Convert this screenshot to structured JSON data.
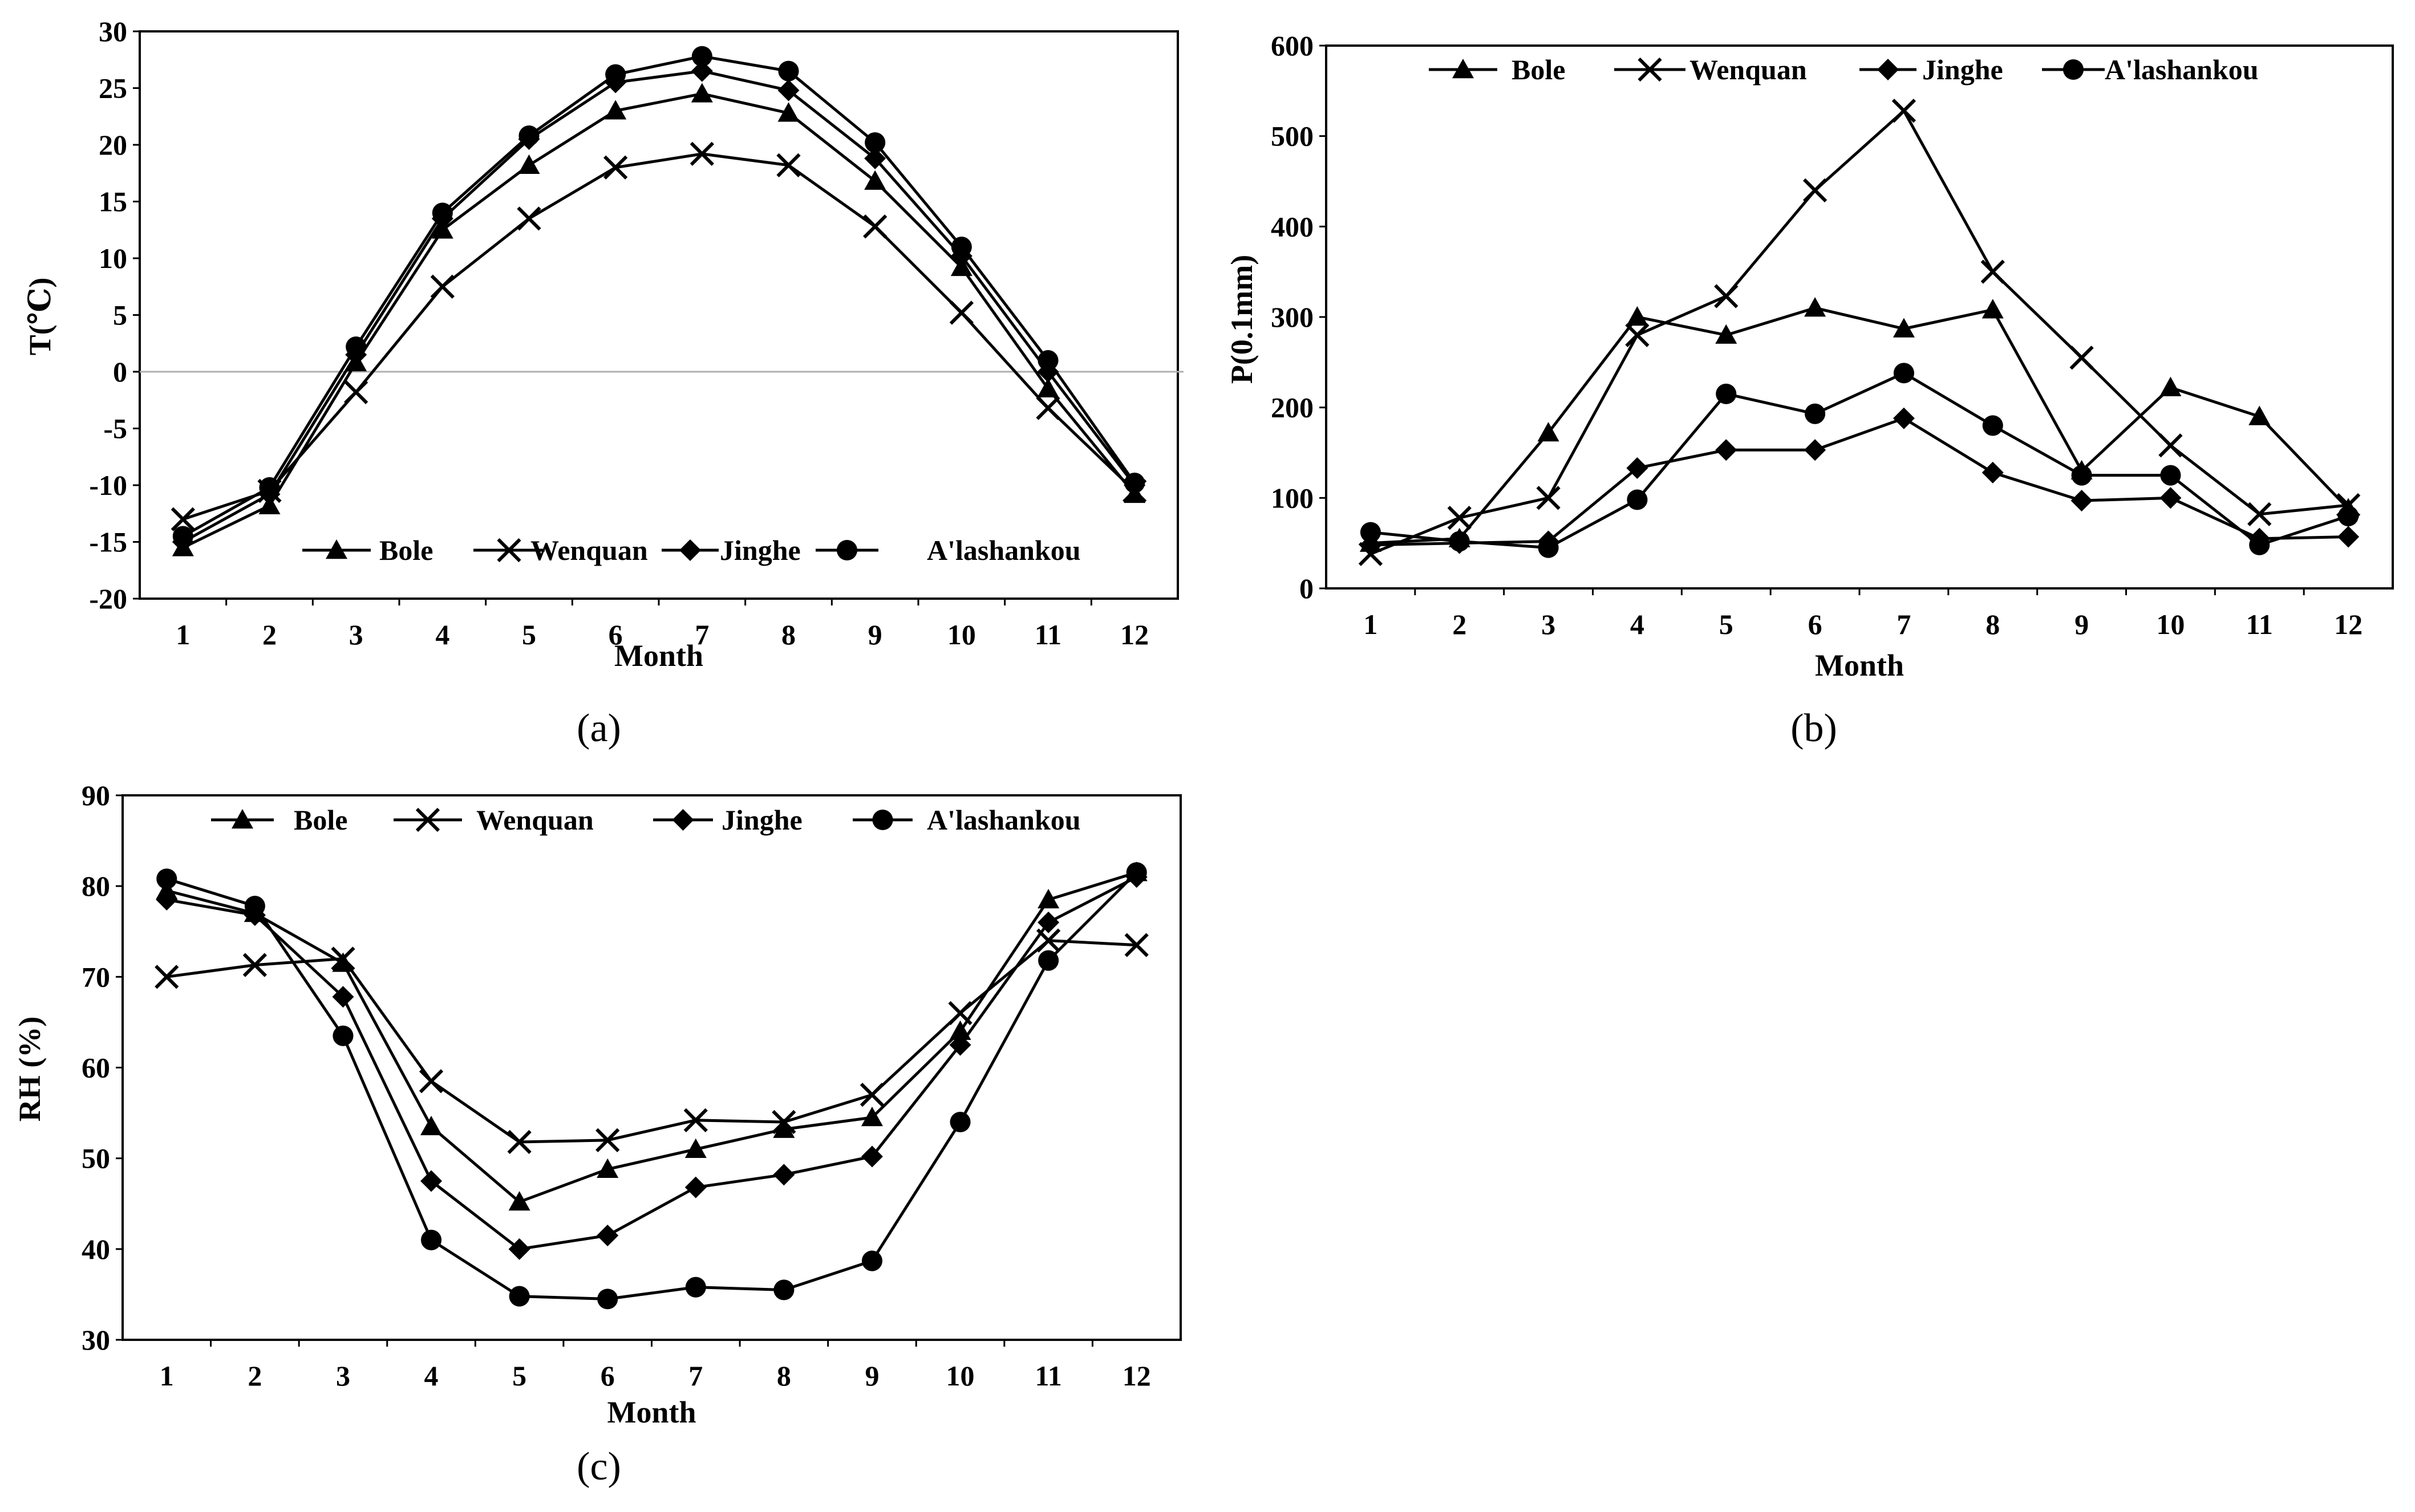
{
  "chart_data": [
    {
      "type": "line",
      "panel": "a",
      "panel_label": "(a)",
      "xlabel": "Month",
      "ylabel": "T(℃)",
      "categories": [
        "1",
        "2",
        "3",
        "4",
        "5",
        "6",
        "7",
        "8",
        "9",
        "10",
        "11",
        "12"
      ],
      "ylim": [
        -20,
        30
      ],
      "yticks": [
        "30",
        "25",
        "20",
        "15",
        "10",
        "5",
        "0",
        "-5",
        "-10",
        "-15",
        "-20"
      ],
      "zero_line": true,
      "legend_position": "bottom",
      "series": [
        {
          "name": "Bole",
          "marker": "triangle",
          "values": [
            -15.5,
            -11.8,
            0.8,
            12.5,
            18.2,
            23.0,
            24.5,
            22.8,
            16.8,
            9.2,
            -1.5,
            -10.8
          ]
        },
        {
          "name": "Wenquan",
          "marker": "x",
          "values": [
            -13.0,
            -10.5,
            -1.8,
            7.5,
            13.5,
            18.0,
            19.2,
            18.2,
            12.8,
            5.2,
            -3.2,
            -10.5
          ]
        },
        {
          "name": "Jinghe",
          "marker": "diamond",
          "values": [
            -15.0,
            -10.8,
            1.5,
            13.5,
            20.5,
            25.5,
            26.5,
            24.8,
            18.8,
            10.2,
            0.0,
            -10.0
          ]
        },
        {
          "name": "A'lashankou",
          "marker": "circle",
          "values": [
            -14.5,
            -10.2,
            2.2,
            14.0,
            20.8,
            26.2,
            27.8,
            26.5,
            20.2,
            11.0,
            1.0,
            -9.8
          ]
        }
      ]
    },
    {
      "type": "line",
      "panel": "b",
      "panel_label": "(b)",
      "xlabel": "Month",
      "ylabel": "P(0.1mm)",
      "categories": [
        "1",
        "2",
        "3",
        "4",
        "5",
        "6",
        "7",
        "8",
        "9",
        "10",
        "11",
        "12"
      ],
      "ylim": [
        0,
        600
      ],
      "yticks": [
        "600",
        "500",
        "400",
        "300",
        "200",
        "100",
        "0"
      ],
      "legend_position": "top",
      "series": [
        {
          "name": "Bole",
          "marker": "triangle",
          "values": [
            50,
            55,
            172,
            300,
            280,
            310,
            287,
            308,
            130,
            222,
            190,
            88
          ]
        },
        {
          "name": "Wenquan",
          "marker": "x",
          "values": [
            38,
            78,
            100,
            280,
            323,
            440,
            528,
            350,
            255,
            158,
            82,
            92
          ]
        },
        {
          "name": "Jinghe",
          "marker": "diamond",
          "values": [
            48,
            50,
            52,
            133,
            153,
            153,
            188,
            128,
            97,
            100,
            55,
            57
          ]
        },
        {
          "name": "A'lashankou",
          "marker": "circle",
          "values": [
            62,
            52,
            45,
            98,
            215,
            193,
            238,
            180,
            125,
            125,
            48,
            80
          ]
        }
      ]
    },
    {
      "type": "line",
      "panel": "c",
      "panel_label": "(c)",
      "xlabel": "Month",
      "ylabel": "RH (%)",
      "categories": [
        "1",
        "2",
        "3",
        "4",
        "5",
        "6",
        "7",
        "8",
        "9",
        "10",
        "11",
        "12"
      ],
      "ylim": [
        30,
        90
      ],
      "yticks": [
        "90",
        "80",
        "70",
        "60",
        "50",
        "40",
        "30"
      ],
      "legend_position": "top",
      "series": [
        {
          "name": "Bole",
          "marker": "triangle",
          "values": [
            79.5,
            77.0,
            71.5,
            53.5,
            45.2,
            48.8,
            51.0,
            53.2,
            54.5,
            64.0,
            78.5,
            81.5
          ]
        },
        {
          "name": "Wenquan",
          "marker": "x",
          "values": [
            70.0,
            71.3,
            72.0,
            58.5,
            51.8,
            52.0,
            54.2,
            54.0,
            57.0,
            66.0,
            74.0,
            73.5
          ]
        },
        {
          "name": "Jinghe",
          "marker": "diamond",
          "values": [
            78.5,
            76.8,
            67.8,
            47.5,
            40.0,
            41.5,
            46.8,
            48.2,
            50.2,
            62.5,
            76.0,
            81.0
          ]
        },
        {
          "name": "A'lashankou",
          "marker": "circle",
          "values": [
            80.8,
            77.8,
            63.5,
            41.0,
            34.8,
            34.5,
            35.8,
            35.5,
            38.7,
            54.0,
            71.8,
            81.5
          ]
        }
      ]
    }
  ]
}
